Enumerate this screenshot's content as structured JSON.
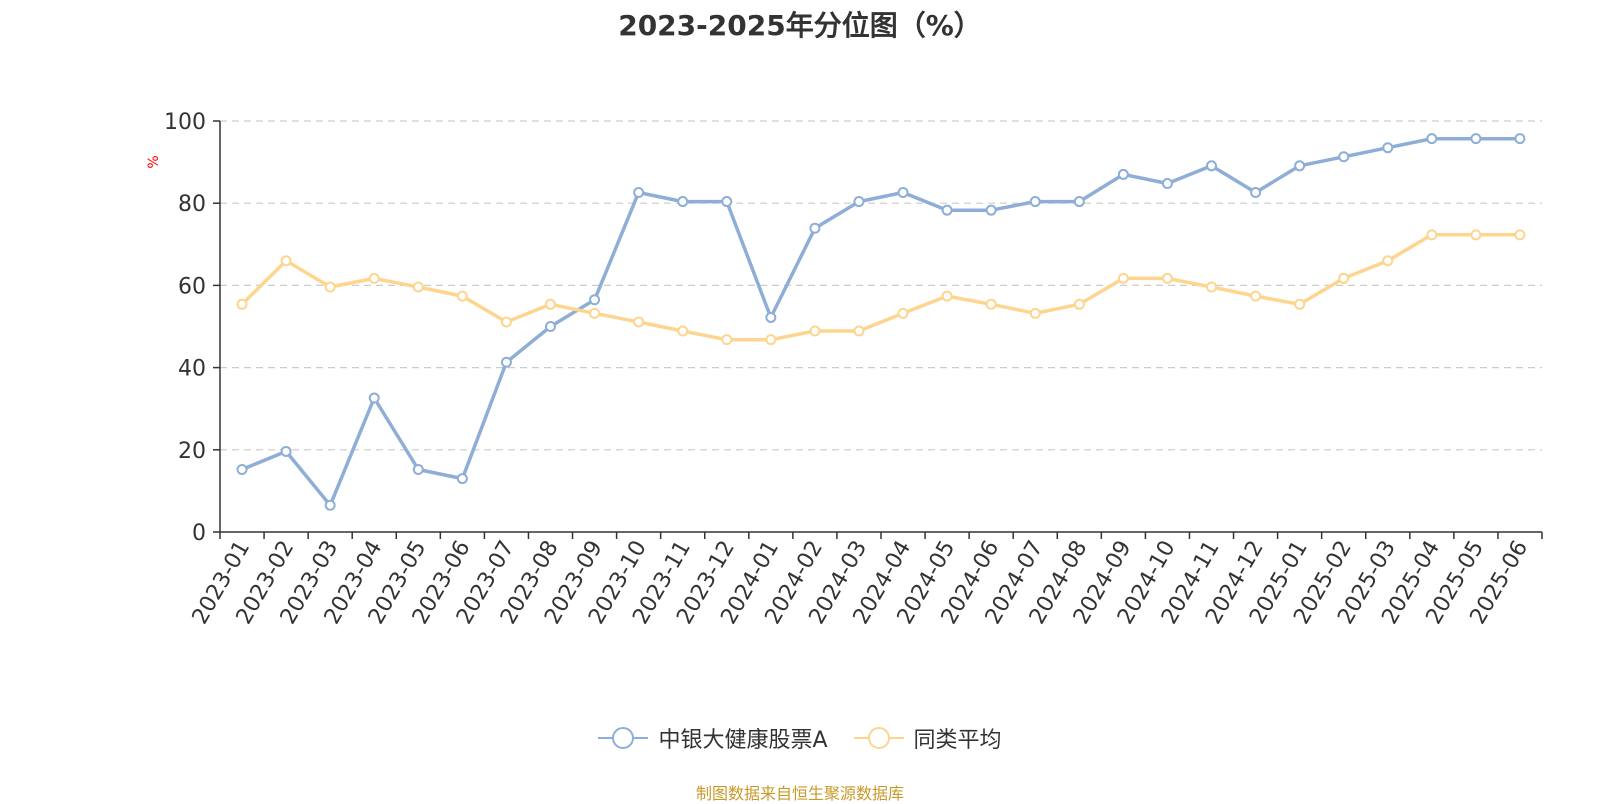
{
  "title": "2023-2025年分位图（%）",
  "source_note": "制图数据来自恒生聚源数据库",
  "colors": {
    "series1": "#8eaed8",
    "series2": "#fdd58f",
    "axis": "#333333",
    "grid": "#cccccc",
    "ylabel": "#ff0000"
  },
  "chart_data": {
    "type": "line",
    "title": "2023-2025年分位图（%）",
    "ylabel": "%",
    "ylim": [
      0,
      100
    ],
    "yticks": [
      0,
      20,
      40,
      60,
      80,
      100
    ],
    "grid": true,
    "legend_position": "bottom",
    "x": [
      "2023-01",
      "2023-02",
      "2023-03",
      "2023-04",
      "2023-05",
      "2023-06",
      "2023-07",
      "2023-08",
      "2023-09",
      "2023-10",
      "2023-11",
      "2023-12",
      "2024-01",
      "2024-02",
      "2024-03",
      "2024-04",
      "2024-05",
      "2024-06",
      "2024-07",
      "2024-08",
      "2024-09",
      "2024-10",
      "2024-11",
      "2024-12",
      "2025-01",
      "2025-02",
      "2025-03",
      "2025-04",
      "2025-05",
      "2025-06"
    ],
    "series": [
      {
        "name": "中银大健康股票A",
        "values": [
          15.2,
          19.6,
          6.5,
          32.6,
          15.2,
          13.0,
          41.3,
          50.0,
          56.5,
          82.6,
          80.4,
          80.4,
          52.2,
          73.9,
          80.4,
          82.6,
          78.3,
          78.3,
          80.4,
          80.4,
          87.0,
          84.8,
          89.1,
          82.6,
          89.1,
          91.3,
          93.5,
          95.7,
          95.7,
          95.7
        ]
      },
      {
        "name": "同类平均",
        "values": [
          55.4,
          66.0,
          59.6,
          61.7,
          59.6,
          57.4,
          51.1,
          55.4,
          53.2,
          51.1,
          48.9,
          46.8,
          46.8,
          48.9,
          48.9,
          53.2,
          57.4,
          55.4,
          53.2,
          55.4,
          61.7,
          61.7,
          59.6,
          57.4,
          55.4,
          61.7,
          66.0,
          72.3,
          72.3,
          72.3
        ]
      }
    ]
  }
}
